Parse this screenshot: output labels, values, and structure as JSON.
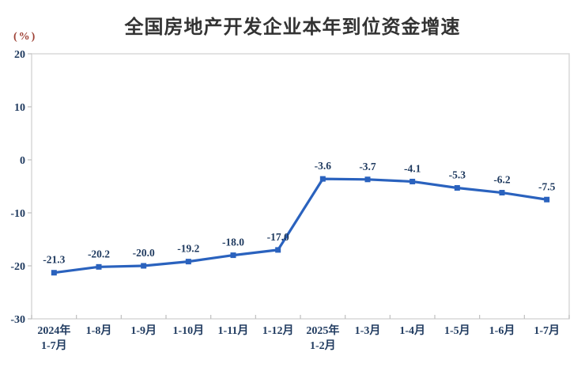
{
  "header": {
    "title": "全国房地产开发企业本年到位资金增速",
    "unit_label": "(%)"
  },
  "chart_data": {
    "type": "line",
    "title": "全国房地产开发企业本年到位资金增速",
    "unit": "(%)",
    "categories": [
      "2024年\n1-7月",
      "1-8月",
      "1-9月",
      "1-10月",
      "1-11月",
      "1-12月",
      "2025年\n1-2月",
      "1-3月",
      "1-4月",
      "1-5月",
      "1-6月",
      "1-7月"
    ],
    "values": [
      -21.3,
      -20.2,
      -20.0,
      -19.2,
      -18.0,
      -17.0,
      -3.6,
      -3.7,
      -4.1,
      -5.3,
      -6.2,
      -7.5
    ],
    "point_labels": [
      "-21.3",
      "-20.2",
      "-20.0",
      "-19.2",
      "-18.0",
      "-17.0",
      "-3.6",
      "-3.7",
      "-4.1",
      "-5.3",
      "-6.2",
      "-7.5"
    ],
    "ylim": [
      -30,
      20
    ],
    "yticks": [
      20,
      10,
      0,
      -10,
      -20,
      -30
    ],
    "ytick_labels": [
      "20",
      "10",
      "0",
      "-10",
      "-20",
      "-30"
    ],
    "grid": false,
    "legend": "none",
    "marker": "square",
    "colors": {
      "line": "#2A62BE",
      "label": "#1F3A5F",
      "title": "#333333",
      "unit": "#9E4135",
      "plot_border": "#D8D8D8",
      "tick": "#BFBFBF",
      "background": "#FFFFFF"
    }
  }
}
